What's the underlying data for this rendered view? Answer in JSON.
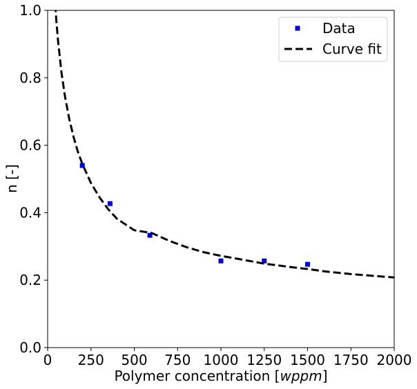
{
  "chart_data": {
    "type": "scatter",
    "xlabel_text": "Polymer concentration [",
    "xlabel_unit": "wppm",
    "xlabel_close": "]",
    "ylabel": "n [-]",
    "xlim": [
      0,
      2000
    ],
    "ylim": [
      0,
      1.0
    ],
    "x_ticks": [
      0,
      250,
      500,
      750,
      1000,
      1250,
      1500,
      1750,
      2000
    ],
    "y_ticks": [
      0.0,
      0.2,
      0.4,
      0.6,
      0.8,
      1.0
    ],
    "x_tick_labels": [
      "0",
      "250",
      "500",
      "750",
      "1000",
      "1250",
      "1500",
      "1750",
      "2000"
    ],
    "y_tick_labels": [
      "0.0",
      "0.2",
      "0.4",
      "0.6",
      "0.8",
      "1.0"
    ],
    "grid": false,
    "legend_position": "top-right",
    "series": [
      {
        "name": "Data",
        "kind": "scatter",
        "marker": "square",
        "color": "#0000cc",
        "points": [
          {
            "x": 200,
            "y": 0.54
          },
          {
            "x": 360,
            "y": 0.427
          },
          {
            "x": 590,
            "y": 0.333
          },
          {
            "x": 1000,
            "y": 0.257
          },
          {
            "x": 1250,
            "y": 0.257
          },
          {
            "x": 1500,
            "y": 0.247
          }
        ]
      },
      {
        "name": "Curve fit",
        "kind": "line",
        "style": "dashed",
        "color": "#000000",
        "points": [
          {
            "x": 40,
            "y": 1.05
          },
          {
            "x": 50,
            "y": 0.97
          },
          {
            "x": 60,
            "y": 0.91
          },
          {
            "x": 80,
            "y": 0.815
          },
          {
            "x": 100,
            "y": 0.745
          },
          {
            "x": 125,
            "y": 0.677
          },
          {
            "x": 150,
            "y": 0.624
          },
          {
            "x": 175,
            "y": 0.58
          },
          {
            "x": 200,
            "y": 0.545
          },
          {
            "x": 250,
            "y": 0.488
          },
          {
            "x": 300,
            "y": 0.445
          },
          {
            "x": 350,
            "y": 0.41
          },
          {
            "x": 400,
            "y": 0.382
          },
          {
            "x": 500,
            "y": 0.348
          },
          {
            "x": 600,
            "y": 0.34
          },
          {
            "x": 700,
            "y": 0.317
          },
          {
            "x": 800,
            "y": 0.298
          },
          {
            "x": 900,
            "y": 0.283
          },
          {
            "x": 1000,
            "y": 0.272
          },
          {
            "x": 1100,
            "y": 0.263
          },
          {
            "x": 1250,
            "y": 0.249
          },
          {
            "x": 1400,
            "y": 0.239
          },
          {
            "x": 1500,
            "y": 0.233
          },
          {
            "x": 1600,
            "y": 0.226
          },
          {
            "x": 1750,
            "y": 0.218
          },
          {
            "x": 1900,
            "y": 0.212
          },
          {
            "x": 2000,
            "y": 0.208
          }
        ]
      }
    ]
  }
}
